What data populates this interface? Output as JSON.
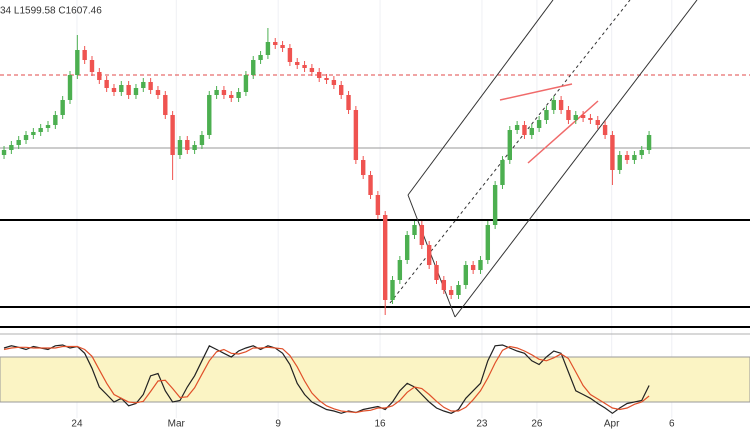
{
  "chart_data": [
    {
      "type": "candlestick",
      "ohlc_readout": "34 L1599.58 C1607.46",
      "xlim": [
        -0.55,
        101.77
      ],
      "ylim": [
        1440,
        1770
      ],
      "up_color": "#4caf50",
      "down_color": "#ef5350",
      "open": [
        1615,
        1620,
        1625,
        1630,
        1635,
        1638,
        1642,
        1645,
        1655,
        1670,
        1695,
        1720,
        1710,
        1698,
        1690,
        1682,
        1678,
        1685,
        1675,
        1682,
        1688,
        1680,
        1675,
        1655,
        1615,
        1630,
        1620,
        1625,
        1635,
        1675,
        1680,
        1675,
        1672,
        1678,
        1695,
        1710,
        1715,
        1728,
        1725,
        1722,
        1708,
        1705,
        1702,
        1698,
        1692,
        1690,
        1685,
        1675,
        1660,
        1610,
        1595,
        1575,
        1555,
        1470,
        1490,
        1510,
        1535,
        1545,
        1525,
        1505,
        1490,
        1480,
        1475,
        1485,
        1505,
        1500,
        1510,
        1545,
        1585,
        1610,
        1640,
        1645,
        1635,
        1642,
        1650,
        1660,
        1670,
        1660,
        1650,
        1655,
        1652,
        1650,
        1645,
        1635,
        1600,
        1615,
        1610,
        1615,
        1620
      ],
      "high": [
        1624,
        1629,
        1634,
        1639,
        1642,
        1646,
        1649,
        1659,
        1674,
        1699,
        1735,
        1724,
        1714,
        1702,
        1694,
        1686,
        1689,
        1689,
        1686,
        1692,
        1692,
        1684,
        1679,
        1659,
        1634,
        1634,
        1629,
        1639,
        1679,
        1684,
        1684,
        1679,
        1682,
        1699,
        1714,
        1719,
        1742,
        1732,
        1729,
        1726,
        1712,
        1709,
        1706,
        1702,
        1696,
        1694,
        1689,
        1679,
        1664,
        1614,
        1599,
        1579,
        1559,
        1494,
        1514,
        1539,
        1549,
        1549,
        1529,
        1509,
        1494,
        1484,
        1489,
        1509,
        1509,
        1514,
        1549,
        1589,
        1614,
        1644,
        1649,
        1649,
        1646,
        1654,
        1664,
        1674,
        1674,
        1664,
        1659,
        1659,
        1656,
        1654,
        1649,
        1639,
        1619,
        1619,
        1619,
        1624,
        1639
      ],
      "low": [
        1611,
        1616,
        1621,
        1626,
        1631,
        1634,
        1638,
        1641,
        1651,
        1666,
        1691,
        1706,
        1694,
        1686,
        1678,
        1674,
        1674,
        1671,
        1671,
        1678,
        1676,
        1671,
        1651,
        1590,
        1611,
        1616,
        1616,
        1621,
        1631,
        1671,
        1671,
        1668,
        1668,
        1674,
        1691,
        1706,
        1711,
        1721,
        1718,
        1704,
        1701,
        1698,
        1694,
        1688,
        1686,
        1681,
        1671,
        1656,
        1606,
        1591,
        1571,
        1551,
        1455,
        1466,
        1486,
        1506,
        1531,
        1521,
        1501,
        1486,
        1476,
        1471,
        1471,
        1481,
        1496,
        1496,
        1506,
        1541,
        1581,
        1606,
        1636,
        1631,
        1631,
        1638,
        1646,
        1656,
        1656,
        1646,
        1646,
        1648,
        1646,
        1641,
        1631,
        1585,
        1596,
        1606,
        1606,
        1611,
        1616
      ],
      "close": [
        1620,
        1625,
        1630,
        1635,
        1638,
        1642,
        1645,
        1655,
        1670,
        1695,
        1720,
        1710,
        1698,
        1690,
        1682,
        1678,
        1685,
        1675,
        1682,
        1688,
        1680,
        1675,
        1655,
        1615,
        1630,
        1620,
        1625,
        1635,
        1675,
        1680,
        1675,
        1672,
        1678,
        1695,
        1710,
        1715,
        1728,
        1725,
        1722,
        1708,
        1705,
        1702,
        1698,
        1692,
        1690,
        1685,
        1675,
        1660,
        1610,
        1595,
        1575,
        1555,
        1470,
        1490,
        1510,
        1535,
        1545,
        1525,
        1505,
        1490,
        1480,
        1475,
        1485,
        1505,
        1500,
        1510,
        1545,
        1585,
        1610,
        1640,
        1645,
        1635,
        1642,
        1650,
        1660,
        1670,
        1660,
        1650,
        1655,
        1652,
        1650,
        1645,
        1635,
        1600,
        1615,
        1610,
        1615,
        1620,
        1635
      ],
      "levels": [
        {
          "value": 1695,
          "color": "#e04848",
          "dashed": true
        },
        {
          "value": 1622,
          "color": "#9a9a9a",
          "dashed": false
        },
        {
          "value": 1550,
          "color": "#000000",
          "dashed": false
        },
        {
          "value": 1463,
          "color": "#000000",
          "dashed": false
        },
        {
          "value": 1443,
          "color": "#000000",
          "dashed": false
        }
      ]
    },
    {
      "type": "oscillator",
      "xlim": [
        -0.55,
        101.77
      ],
      "ylim": [
        0,
        100
      ],
      "band": [
        20,
        80
      ],
      "band_color": "#fbf4c4",
      "xticks": [
        {
          "value": 9.95,
          "label": "24"
        },
        {
          "value": 23.5,
          "label": "Mar"
        },
        {
          "value": 37.4,
          "label": "9"
        },
        {
          "value": 51.3,
          "label": "16"
        },
        {
          "value": 65.2,
          "label": "23"
        },
        {
          "value": 72.7,
          "label": "26"
        },
        {
          "value": 82.9,
          "label": "Apr"
        },
        {
          "value": 91.1,
          "label": "6"
        }
      ],
      "series": [
        {
          "color": "#222222",
          "values": [
            92,
            95,
            93,
            90,
            94,
            92,
            90,
            95,
            96,
            92,
            94,
            85,
            65,
            40,
            30,
            20,
            25,
            15,
            18,
            30,
            55,
            58,
            35,
            20,
            22,
            40,
            55,
            75,
            95,
            90,
            85,
            80,
            88,
            92,
            95,
            90,
            95,
            92,
            85,
            70,
            45,
            30,
            20,
            15,
            10,
            8,
            5,
            8,
            6,
            10,
            12,
            14,
            10,
            20,
            35,
            45,
            40,
            30,
            20,
            12,
            8,
            5,
            10,
            25,
            35,
            45,
            75,
            95,
            96,
            92,
            88,
            85,
            75,
            70,
            80,
            88,
            85,
            60,
            35,
            30,
            25,
            18,
            12,
            5,
            12,
            18,
            20,
            22,
            42
          ]
        },
        {
          "color": "#e0502a",
          "values": [
            90,
            92,
            93,
            93,
            92,
            92,
            92,
            92,
            94,
            94,
            94,
            90,
            81,
            63,
            45,
            30,
            25,
            20,
            19,
            21,
            34,
            48,
            49,
            38,
            26,
            27,
            39,
            57,
            75,
            87,
            90,
            85,
            84,
            87,
            92,
            92,
            93,
            92,
            91,
            82,
            67,
            48,
            32,
            22,
            15,
            11,
            8,
            7,
            6,
            8,
            9,
            12,
            12,
            15,
            22,
            33,
            40,
            38,
            30,
            21,
            13,
            8,
            8,
            13,
            23,
            35,
            52,
            72,
            89,
            94,
            92,
            88,
            83,
            77,
            75,
            79,
            84,
            78,
            60,
            42,
            30,
            24,
            18,
            12,
            10,
            12,
            17,
            20,
            28
          ]
        }
      ]
    }
  ]
}
